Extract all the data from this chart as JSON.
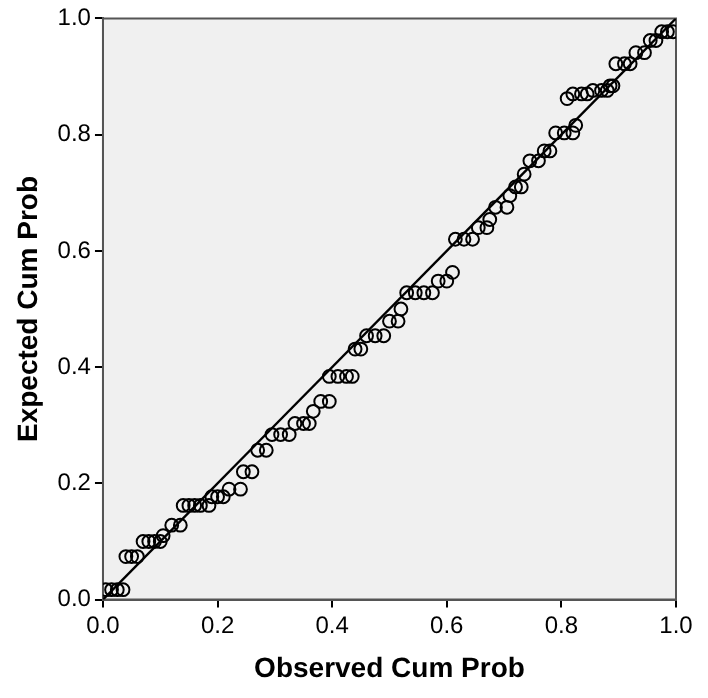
{
  "chart_data": {
    "type": "scatter",
    "xlabel": "Observed Cum Prob",
    "ylabel": "Expected Cum Prob",
    "xlim": [
      0,
      1
    ],
    "ylim": [
      0,
      1
    ],
    "xticks": [
      {
        "value": 0,
        "label": "0.0"
      },
      {
        "value": 0.2,
        "label": "0.2"
      },
      {
        "value": 0.4,
        "label": "0.4"
      },
      {
        "value": 0.6,
        "label": "0.6"
      },
      {
        "value": 0.8,
        "label": "0.8"
      },
      {
        "value": 1,
        "label": "1.0"
      }
    ],
    "yticks": [
      {
        "value": 0,
        "label": "0.0"
      },
      {
        "value": 0.2,
        "label": "0.2"
      },
      {
        "value": 0.4,
        "label": "0.4"
      },
      {
        "value": 0.6,
        "label": "0.6"
      },
      {
        "value": 0.8,
        "label": "0.8"
      },
      {
        "value": 1,
        "label": "1.0"
      }
    ],
    "grid": false,
    "legend": false,
    "marker": "circle",
    "series": [
      {
        "color": "#000000",
        "x": [
          0.005,
          0.015,
          0.025,
          0.035,
          0.04,
          0.05,
          0.06,
          0.07,
          0.08,
          0.09,
          0.1,
          0.105,
          0.12,
          0.135,
          0.14,
          0.15,
          0.16,
          0.17,
          0.185,
          0.19,
          0.2,
          0.21,
          0.22,
          0.24,
          0.245,
          0.26,
          0.27,
          0.285,
          0.295,
          0.31,
          0.325,
          0.335,
          0.35,
          0.36,
          0.367,
          0.38,
          0.395,
          0.395,
          0.41,
          0.425,
          0.435,
          0.44,
          0.45,
          0.46,
          0.475,
          0.49,
          0.5,
          0.515,
          0.52,
          0.53,
          0.545,
          0.56,
          0.575,
          0.585,
          0.6,
          0.61,
          0.615,
          0.63,
          0.645,
          0.655,
          0.67,
          0.675,
          0.685,
          0.705,
          0.71,
          0.72,
          0.73,
          0.735,
          0.745,
          0.76,
          0.77,
          0.78,
          0.79,
          0.805,
          0.82,
          0.825,
          0.81,
          0.82,
          0.835,
          0.845,
          0.855,
          0.87,
          0.88,
          0.885,
          0.89,
          0.895,
          0.91,
          0.92,
          0.93,
          0.945,
          0.955,
          0.965,
          0.975,
          0.985,
          0.995
        ],
        "values": [
          0.017,
          0.017,
          0.017,
          0.017,
          0.074,
          0.074,
          0.074,
          0.1,
          0.1,
          0.1,
          0.1,
          0.11,
          0.128,
          0.128,
          0.162,
          0.162,
          0.162,
          0.162,
          0.162,
          0.177,
          0.177,
          0.177,
          0.19,
          0.19,
          0.22,
          0.22,
          0.257,
          0.257,
          0.284,
          0.284,
          0.284,
          0.303,
          0.303,
          0.303,
          0.324,
          0.341,
          0.341,
          0.384,
          0.384,
          0.384,
          0.384,
          0.431,
          0.431,
          0.454,
          0.454,
          0.454,
          0.479,
          0.479,
          0.5,
          0.528,
          0.528,
          0.528,
          0.528,
          0.548,
          0.548,
          0.563,
          0.62,
          0.62,
          0.62,
          0.64,
          0.64,
          0.654,
          0.675,
          0.675,
          0.695,
          0.71,
          0.71,
          0.732,
          0.755,
          0.755,
          0.772,
          0.772,
          0.803,
          0.803,
          0.803,
          0.816,
          0.862,
          0.87,
          0.87,
          0.87,
          0.876,
          0.876,
          0.876,
          0.884,
          0.884,
          0.922,
          0.922,
          0.922,
          0.941,
          0.941,
          0.962,
          0.962,
          0.977,
          0.977,
          0.977
        ]
      },
      {
        "type": "line",
        "color": "#000000",
        "x": [
          0,
          1
        ],
        "values": [
          0,
          1
        ],
        "marker": "none",
        "line_style": "solid"
      }
    ]
  }
}
